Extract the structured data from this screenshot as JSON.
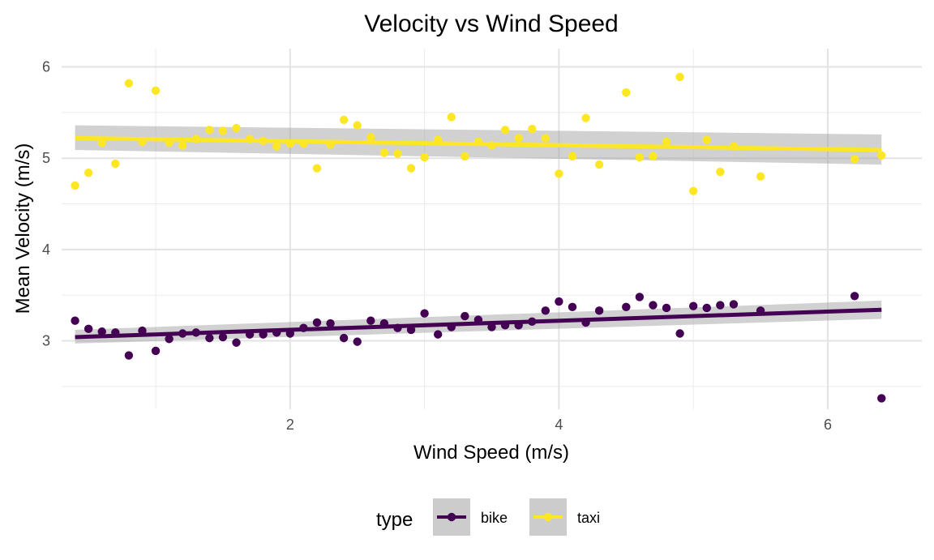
{
  "chart_data": {
    "type": "scatter",
    "title": "Velocity vs Wind Speed",
    "xlabel": "Wind Speed (m/s)",
    "ylabel": "Mean Velocity (m/s)",
    "xlim": [
      0.3,
      6.7
    ],
    "ylim": [
      2.25,
      6.2
    ],
    "x_ticks": [
      2,
      4,
      6
    ],
    "y_ticks": [
      3,
      4,
      5,
      6
    ],
    "grid": true,
    "legend": {
      "title": "type",
      "position": "bottom"
    },
    "series": [
      {
        "name": "bike",
        "color": "#440154",
        "points": [
          [
            0.4,
            3.22
          ],
          [
            0.5,
            3.13
          ],
          [
            0.6,
            3.1
          ],
          [
            0.7,
            3.09
          ],
          [
            0.8,
            2.84
          ],
          [
            0.9,
            3.11
          ],
          [
            1.0,
            2.89
          ],
          [
            1.1,
            3.02
          ],
          [
            1.2,
            3.08
          ],
          [
            1.3,
            3.09
          ],
          [
            1.4,
            3.03
          ],
          [
            1.5,
            3.04
          ],
          [
            1.6,
            2.98
          ],
          [
            1.7,
            3.07
          ],
          [
            1.8,
            3.07
          ],
          [
            1.9,
            3.09
          ],
          [
            2.0,
            3.08
          ],
          [
            2.1,
            3.14
          ],
          [
            2.2,
            3.2
          ],
          [
            2.3,
            3.19
          ],
          [
            2.4,
            3.03
          ],
          [
            2.5,
            2.99
          ],
          [
            2.6,
            3.22
          ],
          [
            2.7,
            3.19
          ],
          [
            2.8,
            3.14
          ],
          [
            2.9,
            3.12
          ],
          [
            3.0,
            3.3
          ],
          [
            3.1,
            3.07
          ],
          [
            3.2,
            3.15
          ],
          [
            3.3,
            3.27
          ],
          [
            3.4,
            3.23
          ],
          [
            3.5,
            3.15
          ],
          [
            3.6,
            3.17
          ],
          [
            3.7,
            3.17
          ],
          [
            3.8,
            3.21
          ],
          [
            3.9,
            3.33
          ],
          [
            4.0,
            3.43
          ],
          [
            4.1,
            3.37
          ],
          [
            4.2,
            3.2
          ],
          [
            4.3,
            3.33
          ],
          [
            4.5,
            3.37
          ],
          [
            4.6,
            3.48
          ],
          [
            4.7,
            3.39
          ],
          [
            4.8,
            3.36
          ],
          [
            4.9,
            3.08
          ],
          [
            5.0,
            3.38
          ],
          [
            5.1,
            3.36
          ],
          [
            5.2,
            3.39
          ],
          [
            5.3,
            3.4
          ],
          [
            5.5,
            3.33
          ],
          [
            6.2,
            3.49
          ],
          [
            6.4,
            2.37
          ]
        ],
        "fit": {
          "x": [
            0.4,
            6.4
          ],
          "y": [
            3.04,
            3.34
          ],
          "band_lower": [
            2.97,
            3.24
          ],
          "band_upper": [
            3.12,
            3.44
          ]
        }
      },
      {
        "name": "taxi",
        "color": "#fde725",
        "points": [
          [
            0.4,
            4.7
          ],
          [
            0.5,
            4.84
          ],
          [
            0.6,
            5.17
          ],
          [
            0.7,
            4.94
          ],
          [
            0.8,
            5.82
          ],
          [
            0.9,
            5.18
          ],
          [
            1.0,
            5.74
          ],
          [
            1.1,
            5.17
          ],
          [
            1.2,
            5.14
          ],
          [
            1.3,
            5.21
          ],
          [
            1.4,
            5.31
          ],
          [
            1.5,
            5.3
          ],
          [
            1.6,
            5.33
          ],
          [
            1.7,
            5.21
          ],
          [
            1.8,
            5.19
          ],
          [
            1.9,
            5.13
          ],
          [
            2.0,
            5.16
          ],
          [
            2.1,
            5.16
          ],
          [
            2.2,
            4.89
          ],
          [
            2.3,
            5.15
          ],
          [
            2.4,
            5.42
          ],
          [
            2.5,
            5.36
          ],
          [
            2.6,
            5.23
          ],
          [
            2.7,
            5.06
          ],
          [
            2.8,
            5.05
          ],
          [
            2.9,
            4.89
          ],
          [
            3.0,
            5.01
          ],
          [
            3.1,
            5.2
          ],
          [
            3.2,
            5.45
          ],
          [
            3.3,
            5.02
          ],
          [
            3.4,
            5.18
          ],
          [
            3.5,
            5.14
          ],
          [
            3.6,
            5.31
          ],
          [
            3.7,
            5.22
          ],
          [
            3.8,
            5.32
          ],
          [
            3.9,
            5.22
          ],
          [
            4.0,
            4.83
          ],
          [
            4.1,
            5.02
          ],
          [
            4.2,
            5.44
          ],
          [
            4.3,
            4.93
          ],
          [
            4.5,
            5.72
          ],
          [
            4.6,
            5.01
          ],
          [
            4.7,
            5.02
          ],
          [
            4.8,
            5.18
          ],
          [
            4.9,
            5.89
          ],
          [
            5.0,
            4.64
          ],
          [
            5.1,
            5.2
          ],
          [
            5.2,
            4.85
          ],
          [
            5.3,
            5.13
          ],
          [
            5.5,
            4.8
          ],
          [
            6.2,
            4.99
          ],
          [
            6.4,
            5.03
          ]
        ],
        "fit": {
          "x": [
            0.4,
            6.4
          ],
          "y": [
            5.22,
            5.09
          ],
          "band_lower": [
            5.09,
            4.93
          ],
          "band_upper": [
            5.36,
            5.26
          ]
        }
      }
    ]
  }
}
